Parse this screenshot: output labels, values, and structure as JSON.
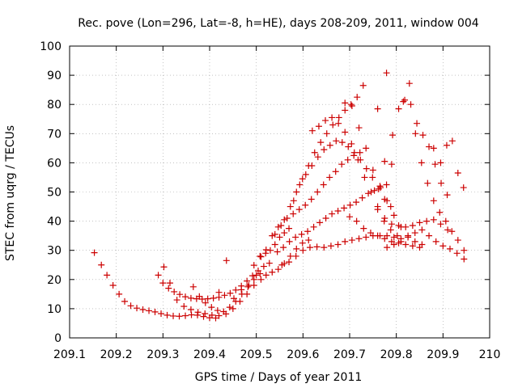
{
  "chart_data": {
    "type": "scatter",
    "title": "Rec. pove (Lon=296, Lat=-8, h=HE), days 208-209, 2011, window 004",
    "xlabel": "GPS time / Days of year 2011",
    "ylabel": "STEC from uqrg / TECUs",
    "xlim": [
      209.1,
      210
    ],
    "ylim": [
      0,
      100
    ],
    "xticks": [
      "209.1",
      "209.2",
      "209.3",
      "209.4",
      "209.5",
      "209.6",
      "209.7",
      "209.8",
      "209.9",
      "210"
    ],
    "yticks": [
      "0",
      "10",
      "20",
      "30",
      "40",
      "50",
      "60",
      "70",
      "80",
      "90",
      "100"
    ],
    "grid": true,
    "marker": "plus",
    "color": "#cc0000",
    "series": [
      {
        "points": [
          [
            209.153,
            29.2
          ],
          [
            209.168,
            25.0
          ],
          [
            209.18,
            21.5
          ],
          [
            209.193,
            18.0
          ],
          [
            209.206,
            15.0
          ],
          [
            209.218,
            12.5
          ],
          [
            209.231,
            11.0
          ],
          [
            209.244,
            10.2
          ],
          [
            209.257,
            9.7
          ],
          [
            209.27,
            9.3
          ],
          [
            209.283,
            8.9
          ],
          [
            209.296,
            8.3
          ],
          [
            209.309,
            7.8
          ],
          [
            209.322,
            7.5
          ],
          [
            209.335,
            7.4
          ],
          [
            209.348,
            7.6
          ],
          [
            209.361,
            7.9
          ],
          [
            209.374,
            7.8
          ],
          [
            209.387,
            7.3
          ],
          [
            209.4,
            6.9
          ],
          [
            209.413,
            6.8
          ],
          [
            209.29,
            21.5
          ],
          [
            209.3,
            18.8
          ],
          [
            209.312,
            17.0
          ],
          [
            209.324,
            15.8
          ],
          [
            209.336,
            14.9
          ],
          [
            209.348,
            14.1
          ],
          [
            209.36,
            13.6
          ],
          [
            209.372,
            13.4
          ],
          [
            209.384,
            13.3
          ],
          [
            209.396,
            13.4
          ],
          [
            209.408,
            13.6
          ],
          [
            209.42,
            13.9
          ],
          [
            209.432,
            14.6
          ],
          [
            209.444,
            15.3
          ],
          [
            209.456,
            16.4
          ],
          [
            209.468,
            17.8
          ],
          [
            209.48,
            19.5
          ],
          [
            209.492,
            21.3
          ],
          [
            209.504,
            23.0
          ],
          [
            209.516,
            24.5
          ],
          [
            209.528,
            25.6
          ],
          [
            209.302,
            24.3
          ],
          [
            209.315,
            18.8
          ],
          [
            209.33,
            13.0
          ],
          [
            209.345,
            10.8
          ],
          [
            209.36,
            9.7
          ],
          [
            209.375,
            8.8
          ],
          [
            209.39,
            8.3
          ],
          [
            209.405,
            7.8
          ],
          [
            209.42,
            7.6
          ],
          [
            209.435,
            8.2
          ],
          [
            209.45,
            10.0
          ],
          [
            209.465,
            12.5
          ],
          [
            209.48,
            15.0
          ],
          [
            209.495,
            18.0
          ],
          [
            209.51,
            20.0
          ],
          [
            209.365,
            17.5
          ],
          [
            209.378,
            14.2
          ],
          [
            209.391,
            12.0
          ],
          [
            209.404,
            10.5
          ],
          [
            209.417,
            9.4
          ],
          [
            209.43,
            9.0
          ],
          [
            209.443,
            10.5
          ],
          [
            209.456,
            12.5
          ],
          [
            209.469,
            15.0
          ],
          [
            209.482,
            17.5
          ],
          [
            209.495,
            20.0
          ],
          [
            209.508,
            22.0
          ],
          [
            209.521,
            21.5
          ],
          [
            209.534,
            22.5
          ],
          [
            209.547,
            23.5
          ],
          [
            209.56,
            25.5
          ],
          [
            209.573,
            28.0
          ],
          [
            209.586,
            30.5
          ],
          [
            209.599,
            32.5
          ],
          [
            209.612,
            33.5
          ],
          [
            209.42,
            15.6
          ],
          [
            209.436,
            26.5
          ],
          [
            209.452,
            13.5
          ],
          [
            209.468,
            16.5
          ],
          [
            209.484,
            18.0
          ],
          [
            209.5,
            21.5
          ],
          [
            209.51,
            27.8
          ],
          [
            209.52,
            29.0
          ],
          [
            209.53,
            30.0
          ],
          [
            209.54,
            32.0
          ],
          [
            209.55,
            34.5
          ],
          [
            209.56,
            36.0
          ],
          [
            209.57,
            37.5
          ],
          [
            209.495,
            24.9
          ],
          [
            209.508,
            28.0
          ],
          [
            209.521,
            30.2
          ],
          [
            209.534,
            35.0
          ],
          [
            209.547,
            38.0
          ],
          [
            209.56,
            40.5
          ],
          [
            209.573,
            45.0
          ],
          [
            209.586,
            50.0
          ],
          [
            209.599,
            54.5
          ],
          [
            209.612,
            59.0
          ],
          [
            209.625,
            63.5
          ],
          [
            209.638,
            67.0
          ],
          [
            209.651,
            70.0
          ],
          [
            209.664,
            73.0
          ],
          [
            209.677,
            75.5
          ],
          [
            209.69,
            78.0
          ],
          [
            209.703,
            80.0
          ],
          [
            209.716,
            82.5
          ],
          [
            209.729,
            86.5
          ],
          [
            209.54,
            35.5
          ],
          [
            209.553,
            38.5
          ],
          [
            209.566,
            41.0
          ],
          [
            209.579,
            42.5
          ],
          [
            209.592,
            44.0
          ],
          [
            209.605,
            45.5
          ],
          [
            209.618,
            47.5
          ],
          [
            209.631,
            50.0
          ],
          [
            209.644,
            52.5
          ],
          [
            209.657,
            55.0
          ],
          [
            209.67,
            57.0
          ],
          [
            209.683,
            59.5
          ],
          [
            209.696,
            61.0
          ],
          [
            209.709,
            62.5
          ],
          [
            209.722,
            63.5
          ],
          [
            209.545,
            29.5
          ],
          [
            209.558,
            31.0
          ],
          [
            209.571,
            33.0
          ],
          [
            209.584,
            34.5
          ],
          [
            209.597,
            35.5
          ],
          [
            209.61,
            36.5
          ],
          [
            209.623,
            38.0
          ],
          [
            209.636,
            39.5
          ],
          [
            209.649,
            41.0
          ],
          [
            209.662,
            42.5
          ],
          [
            209.675,
            43.5
          ],
          [
            209.688,
            44.5
          ],
          [
            209.701,
            45.5
          ],
          [
            209.714,
            46.5
          ],
          [
            209.727,
            48.0
          ],
          [
            209.74,
            49.5
          ],
          [
            209.753,
            50.5
          ],
          [
            209.766,
            51.5
          ],
          [
            209.779,
            52.5
          ],
          [
            209.555,
            25.0
          ],
          [
            209.57,
            26.0
          ],
          [
            209.585,
            28.0
          ],
          [
            209.6,
            30.0
          ],
          [
            209.615,
            31.0
          ],
          [
            209.63,
            31.2
          ],
          [
            209.645,
            31.0
          ],
          [
            209.66,
            31.5
          ],
          [
            209.675,
            32.0
          ],
          [
            209.69,
            33.0
          ],
          [
            209.705,
            33.5
          ],
          [
            209.72,
            34.0
          ],
          [
            209.735,
            34.5
          ],
          [
            209.75,
            35.0
          ],
          [
            209.765,
            35.0
          ],
          [
            209.78,
            35.0
          ],
          [
            209.795,
            34.5
          ],
          [
            209.81,
            34.0
          ],
          [
            209.58,
            47.0
          ],
          [
            209.593,
            52.5
          ],
          [
            209.606,
            56.0
          ],
          [
            209.619,
            59.0
          ],
          [
            209.632,
            62.0
          ],
          [
            209.645,
            64.5
          ],
          [
            209.658,
            66.0
          ],
          [
            209.671,
            67.5
          ],
          [
            209.684,
            67.0
          ],
          [
            209.697,
            65.5
          ],
          [
            209.71,
            63.5
          ],
          [
            209.723,
            61.0
          ],
          [
            209.736,
            58.0
          ],
          [
            209.749,
            55.0
          ],
          [
            209.762,
            51.0
          ],
          [
            209.775,
            47.5
          ],
          [
            209.788,
            45.0
          ],
          [
            209.62,
            71.0
          ],
          [
            209.634,
            72.5
          ],
          [
            209.648,
            74.5
          ],
          [
            209.662,
            75.5
          ],
          [
            209.676,
            73.5
          ],
          [
            209.69,
            70.5
          ],
          [
            209.704,
            66.5
          ],
          [
            209.718,
            61.0
          ],
          [
            209.732,
            55.0
          ],
          [
            209.746,
            50.0
          ],
          [
            209.76,
            44.0
          ],
          [
            209.774,
            40.0
          ],
          [
            209.788,
            37.0
          ],
          [
            209.802,
            35.0
          ],
          [
            209.69,
            80.5
          ],
          [
            209.705,
            79.5
          ],
          [
            209.72,
            72.0
          ],
          [
            209.735,
            65.0
          ],
          [
            209.75,
            57.5
          ],
          [
            209.765,
            52.0
          ],
          [
            209.78,
            47.0
          ],
          [
            209.795,
            42.0
          ],
          [
            209.81,
            38.0
          ],
          [
            209.825,
            35.0
          ],
          [
            209.84,
            33.0
          ],
          [
            209.855,
            32.0
          ],
          [
            209.779,
            90.8
          ],
          [
            209.792,
            69.5
          ],
          [
            209.805,
            78.5
          ],
          [
            209.818,
            81.5
          ],
          [
            209.831,
            80.0
          ],
          [
            209.844,
            73.5
          ],
          [
            209.857,
            69.5
          ],
          [
            209.87,
            65.5
          ],
          [
            209.883,
            59.5
          ],
          [
            209.896,
            53.0
          ],
          [
            209.909,
            49.0
          ],
          [
            209.828,
            87.2
          ],
          [
            209.841,
            70.0
          ],
          [
            209.854,
            60.0
          ],
          [
            209.867,
            53.0
          ],
          [
            209.88,
            47.0
          ],
          [
            209.893,
            43.0
          ],
          [
            209.906,
            40.0
          ],
          [
            209.919,
            36.5
          ],
          [
            209.932,
            33.5
          ],
          [
            209.945,
            30.0
          ],
          [
            209.7,
            41.5
          ],
          [
            209.715,
            40.0
          ],
          [
            209.73,
            37.5
          ],
          [
            209.745,
            36.0
          ],
          [
            209.76,
            35.0
          ],
          [
            209.775,
            34.0
          ],
          [
            209.79,
            33.0
          ],
          [
            209.805,
            32.5
          ],
          [
            209.82,
            32.0
          ],
          [
            209.835,
            31.5
          ],
          [
            209.85,
            31.0
          ],
          [
            209.76,
            45.0
          ],
          [
            209.775,
            41.0
          ],
          [
            209.79,
            39.0
          ],
          [
            209.805,
            38.5
          ],
          [
            209.82,
            38.0
          ],
          [
            209.835,
            38.5
          ],
          [
            209.85,
            39.5
          ],
          [
            209.865,
            40.0
          ],
          [
            209.88,
            40.5
          ],
          [
            209.895,
            39.0
          ],
          [
            209.91,
            37.0
          ],
          [
            209.78,
            31.0
          ],
          [
            209.795,
            32.0
          ],
          [
            209.81,
            33.0
          ],
          [
            209.825,
            34.5
          ],
          [
            209.84,
            36.0
          ],
          [
            209.855,
            37.0
          ],
          [
            209.87,
            35.0
          ],
          [
            209.885,
            33.0
          ],
          [
            209.9,
            31.5
          ],
          [
            209.915,
            30.5
          ],
          [
            209.93,
            29.0
          ],
          [
            209.945,
            27.0
          ],
          [
            209.88,
            65.0
          ],
          [
            209.895,
            60.0
          ],
          [
            209.908,
            66.0
          ],
          [
            209.92,
            67.5
          ],
          [
            209.932,
            56.5
          ],
          [
            209.944,
            51.5
          ],
          [
            209.76,
            78.5
          ],
          [
            209.775,
            60.5
          ],
          [
            209.79,
            59.5
          ],
          [
            209.815,
            81.0
          ]
        ]
      }
    ]
  }
}
